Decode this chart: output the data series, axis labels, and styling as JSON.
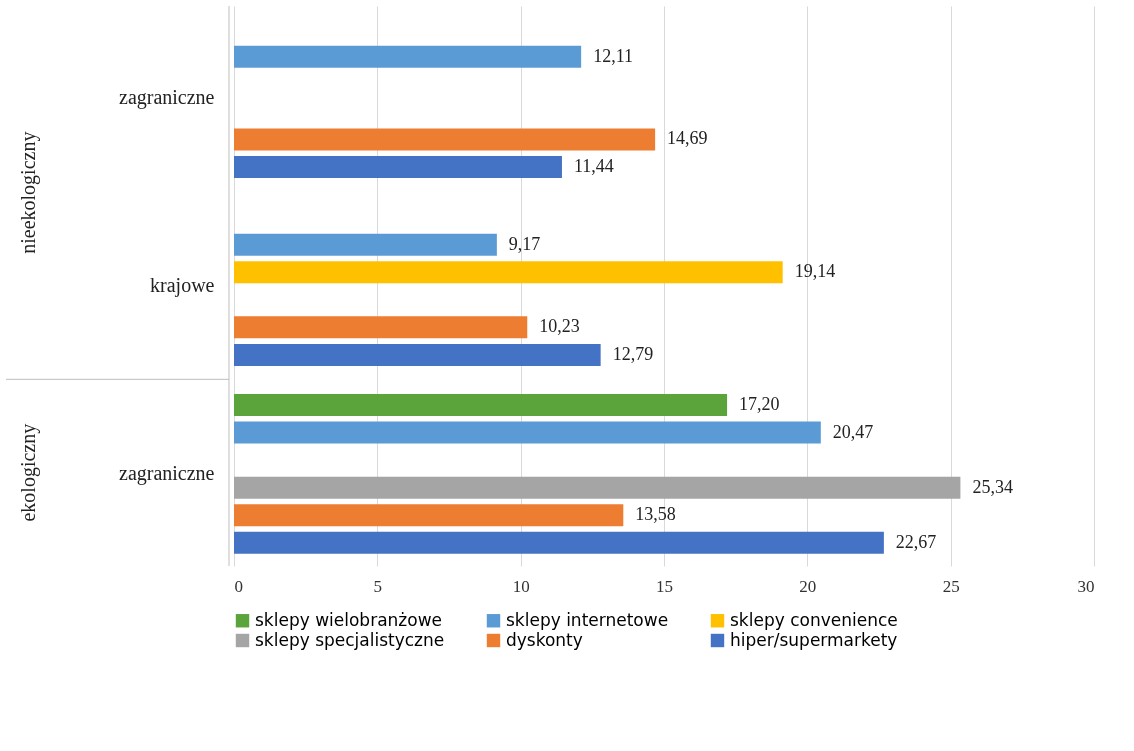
{
  "chart_data": {
    "type": "bar",
    "orientation": "horizontal",
    "categories": [
      "zagraniczne",
      "krajowe",
      "zagraniczne"
    ],
    "series": [
      {
        "name": "sklepy wielobranżowe",
        "color": "#5ba33b",
        "values": [
          null,
          null,
          17.2
        ],
        "value_labels": [
          null,
          null,
          "17,20"
        ]
      },
      {
        "name": "sklepy internetowe",
        "color": "#5b9bd5",
        "values": [
          12.11,
          9.17,
          20.47
        ],
        "value_labels": [
          "12,11",
          "9,17",
          "20,47"
        ]
      },
      {
        "name": "sklepy convenience",
        "color": "#ffc000",
        "values": [
          null,
          19.14,
          null
        ],
        "value_labels": [
          null,
          "19,14",
          null
        ]
      },
      {
        "name": "sklepy specjalistyczne",
        "color": "#a5a5a5",
        "values": [
          null,
          null,
          25.34
        ],
        "value_labels": [
          null,
          null,
          "25,34"
        ]
      },
      {
        "name": "dyskonty",
        "color": "#ed7d31",
        "values": [
          14.69,
          10.23,
          13.58
        ],
        "value_labels": [
          "14,69",
          "10,23",
          "13,58"
        ]
      },
      {
        "name": "hiper/supermarkety",
        "color": "#4472c4",
        "values": [
          11.44,
          12.79,
          22.67
        ],
        "value_labels": [
          "11,44",
          "12,79",
          "22,67"
        ]
      }
    ],
    "annotations": [
      "nieekologiczny",
      "ekologiczny"
    ],
    "xlim": [
      0,
      30
    ],
    "xticks": [
      0,
      5,
      10,
      15,
      20,
      25,
      30
    ],
    "grid": "x",
    "legend": "bottom"
  }
}
